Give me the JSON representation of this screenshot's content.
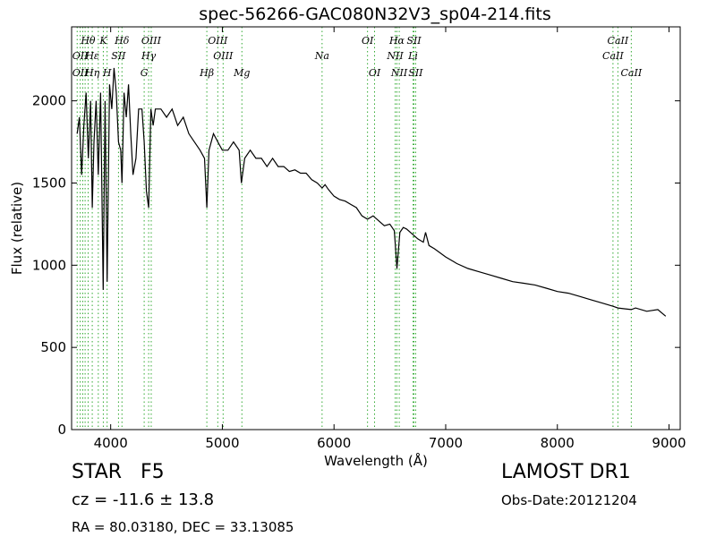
{
  "chart_data": {
    "type": "line",
    "title": "spec-56266-GAC080N32V3_sp04-214.fits",
    "xlabel": "Wavelength (Å)",
    "ylabel": "Flux (relative)",
    "xlim": [
      3650,
      9100
    ],
    "ylim": [
      0,
      2450
    ],
    "xticks": [
      4000,
      5000,
      6000,
      7000,
      8000,
      9000
    ],
    "yticks": [
      0,
      500,
      1000,
      1500,
      2000
    ],
    "grid": false,
    "line_color": "#000000",
    "marker_color": "#33aa33",
    "series": [
      {
        "x": [
          3700,
          3720,
          3740,
          3760,
          3780,
          3800,
          3820,
          3835,
          3850,
          3870,
          3889,
          3910,
          3933,
          3950,
          3968,
          3990,
          4010,
          4030,
          4050,
          4070,
          4090,
          4101,
          4120,
          4140,
          4160,
          4180,
          4200,
          4226,
          4250,
          4280,
          4300,
          4320,
          4340,
          4360,
          4380,
          4400,
          4450,
          4500,
          4550,
          4600,
          4650,
          4700,
          4750,
          4800,
          4840,
          4861,
          4880,
          4920,
          4960,
          5000,
          5050,
          5100,
          5150,
          5170,
          5200,
          5250,
          5300,
          5350,
          5400,
          5450,
          5500,
          5550,
          5600,
          5650,
          5700,
          5750,
          5800,
          5850,
          5893,
          5920,
          5950,
          6000,
          6050,
          6100,
          6150,
          6200,
          6250,
          6300,
          6350,
          6400,
          6450,
          6500,
          6540,
          6563,
          6590,
          6620,
          6650,
          6700,
          6750,
          6800,
          6820,
          6850,
          6900,
          7000,
          7100,
          7200,
          7300,
          7400,
          7500,
          7600,
          7700,
          7800,
          7900,
          8000,
          8100,
          8200,
          8300,
          8400,
          8498,
          8542,
          8600,
          8662,
          8700,
          8800,
          8900,
          8970
        ],
        "y": [
          1800,
          1900,
          1550,
          1850,
          2050,
          1650,
          2000,
          1350,
          1750,
          2000,
          1550,
          2050,
          850,
          2000,
          900,
          2100,
          1950,
          2200,
          2050,
          1750,
          1700,
          1500,
          2050,
          1900,
          2100,
          1800,
          1550,
          1650,
          1950,
          1950,
          1750,
          1450,
          1350,
          1950,
          1850,
          1950,
          1950,
          1900,
          1950,
          1850,
          1900,
          1800,
          1750,
          1700,
          1650,
          1350,
          1700,
          1800,
          1750,
          1700,
          1700,
          1750,
          1700,
          1500,
          1650,
          1700,
          1650,
          1650,
          1600,
          1650,
          1600,
          1600,
          1570,
          1580,
          1560,
          1560,
          1520,
          1500,
          1470,
          1490,
          1460,
          1420,
          1400,
          1390,
          1370,
          1350,
          1300,
          1280,
          1300,
          1270,
          1240,
          1250,
          1210,
          980,
          1200,
          1230,
          1220,
          1190,
          1160,
          1140,
          1200,
          1120,
          1100,
          1050,
          1010,
          980,
          960,
          940,
          920,
          900,
          890,
          880,
          860,
          840,
          830,
          810,
          790,
          770,
          750,
          740,
          735,
          730,
          740,
          720,
          730,
          690
        ]
      }
    ],
    "spectral_lines": [
      {
        "label": "Hθ",
        "x": 3798,
        "row": 0
      },
      {
        "label": "K",
        "x": 3934,
        "row": 0
      },
      {
        "label": "Hδ",
        "x": 4101,
        "row": 0
      },
      {
        "label": "OIII",
        "x": 4363,
        "row": 0
      },
      {
        "label": "OIII",
        "x": 4959,
        "row": 0
      },
      {
        "label": "OI",
        "x": 6300,
        "row": 0
      },
      {
        "label": "Hα",
        "x": 6563,
        "row": 0
      },
      {
        "label": "SII",
        "x": 6716,
        "row": 0
      },
      {
        "label": "CaII",
        "x": 8542,
        "row": 0
      },
      {
        "label": "OII",
        "x": 3727,
        "row": 1
      },
      {
        "label": "Hε",
        "x": 3835,
        "row": 1
      },
      {
        "label": "SII",
        "x": 4070,
        "row": 1
      },
      {
        "label": "Hγ",
        "x": 4340,
        "row": 1
      },
      {
        "label": "OIII",
        "x": 5007,
        "row": 1
      },
      {
        "label": "Na",
        "x": 5893,
        "row": 1
      },
      {
        "label": "NII",
        "x": 6548,
        "row": 1
      },
      {
        "label": "Li",
        "x": 6708,
        "row": 1
      },
      {
        "label": "CaII",
        "x": 8498,
        "row": 1
      },
      {
        "label": "OII",
        "x": 3727,
        "row": 2
      },
      {
        "label": "Hη",
        "x": 3835,
        "row": 2
      },
      {
        "label": "H",
        "x": 3968,
        "row": 2
      },
      {
        "label": "G",
        "x": 4300,
        "row": 2
      },
      {
        "label": "Hβ",
        "x": 4861,
        "row": 2
      },
      {
        "label": "Mg",
        "x": 5175,
        "row": 2
      },
      {
        "label": "OI",
        "x": 6363,
        "row": 2
      },
      {
        "label": "NII",
        "x": 6584,
        "row": 2
      },
      {
        "label": "SII",
        "x": 6731,
        "row": 2
      },
      {
        "label": "CaII",
        "x": 8662,
        "row": 2
      }
    ],
    "spectral_line_positions": [
      3700,
      3727,
      3750,
      3771,
      3798,
      3835,
      3889,
      3934,
      3968,
      4070,
      4101,
      4300,
      4340,
      4363,
      4861,
      4959,
      5007,
      5175,
      5893,
      6300,
      6363,
      6548,
      6563,
      6584,
      6708,
      6716,
      6731,
      8498,
      8542,
      8662
    ]
  },
  "footer": {
    "object_class": "STAR   F5",
    "redshift": "cz = -11.6 ± 13.8",
    "coordinates": "RA = 80.03180, DEC = 33.13085",
    "survey": "LAMOST DR1",
    "obs_date": "Obs-Date:20121204"
  }
}
